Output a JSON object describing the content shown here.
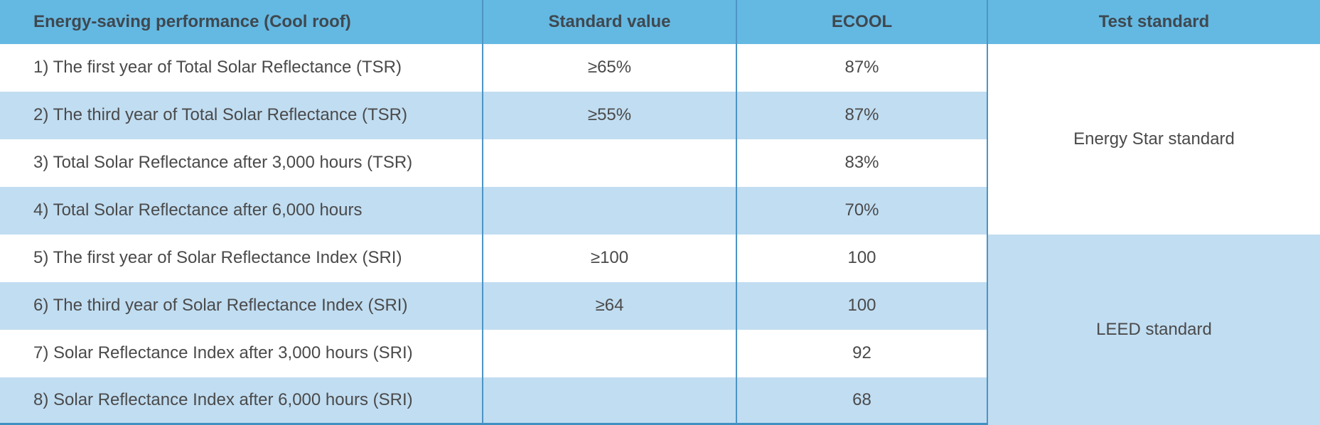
{
  "table": {
    "header": {
      "performance": "Energy-saving performance (Cool roof)",
      "standard_value": "Standard value",
      "ecool": "ECOOL",
      "test_standard": "Test standard"
    },
    "rows": [
      {
        "label": "1) The first year of Total Solar Reflectance (TSR)",
        "standard_value": "≥65%",
        "ecool": "87%"
      },
      {
        "label": "2) The third year of Total Solar Reflectance (TSR)",
        "standard_value": "≥55%",
        "ecool": "87%"
      },
      {
        "label": "3) Total Solar Reflectance after 3,000 hours (TSR)",
        "standard_value": "",
        "ecool": "83%"
      },
      {
        "label": "4) Total Solar Reflectance after 6,000 hours",
        "standard_value": "",
        "ecool": "70%"
      },
      {
        "label": "5) The first year of Solar Reflectance Index (SRI)",
        "standard_value": "≥100",
        "ecool": "100"
      },
      {
        "label": "6) The third year of Solar Reflectance Index (SRI)",
        "standard_value": "≥64",
        "ecool": "100"
      },
      {
        "label": "7) Solar Reflectance Index after 3,000 hours (SRI)",
        "standard_value": "",
        "ecool": "92"
      },
      {
        "label": "8) Solar Reflectance Index after 6,000 hours (SRI)",
        "standard_value": "",
        "ecool": "68"
      }
    ],
    "test_standards": [
      {
        "label": "Energy Star standard",
        "rows_covered": "1-4"
      },
      {
        "label": "LEED standard",
        "rows_covered": "5-8"
      }
    ],
    "colors": {
      "header_bg": "#64b9e2",
      "alt_row_bg": "#c1ddf1",
      "row_bg": "#ffffff",
      "divider": "#4d94c4",
      "bottom_border": "#4090c2",
      "header_text": "#3f4850",
      "body_text": "#4a4a4b"
    }
  }
}
